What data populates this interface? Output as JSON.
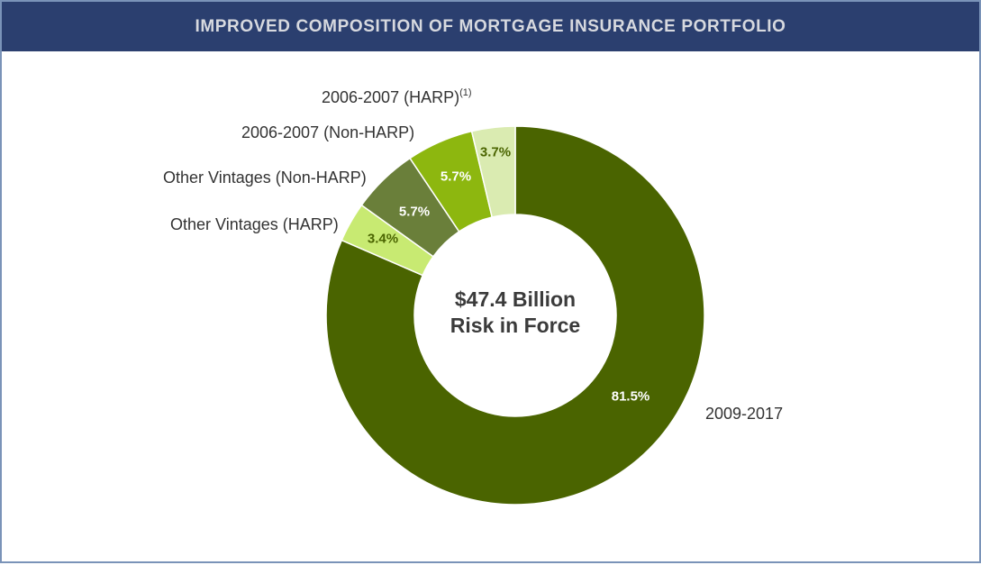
{
  "header": {
    "title": "IMPROVED COMPOSITION OF MORTGAGE INSURANCE PORTFOLIO"
  },
  "center": {
    "line1": "$47.4 Billion",
    "line2": "Risk in Force"
  },
  "colors": {
    "header_bg": "#2b3f6f",
    "header_text": "#d7d9df",
    "frame_border": "#7a93b8"
  },
  "labels": {
    "s2009": "2009-2017",
    "ovharp": "Other Vintages (HARP)",
    "ovnonharp": "Other Vintages (Non-HARP)",
    "nonharp0607": "2006-2007 (Non-HARP)",
    "harp0607": "2006-2007 (HARP)",
    "harp0607_footnote": "(1)"
  },
  "values": {
    "s2009": "81.5%",
    "ovharp": "3.4%",
    "ovnonharp": "5.7%",
    "nonharp0607": "5.7%",
    "harp0607": "3.7%"
  },
  "chart_data": {
    "type": "pie",
    "subtype": "donut",
    "title": "IMPROVED COMPOSITION OF MORTGAGE INSURANCE PORTFOLIO",
    "center_annotation": "$47.4 Billion Risk in Force",
    "categories": [
      "2009-2017",
      "Other Vintages (HARP)",
      "Other Vintages (Non-HARP)",
      "2006-2007 (Non-HARP)",
      "2006-2007 (HARP)(1)"
    ],
    "values": [
      81.5,
      3.4,
      5.7,
      5.7,
      3.7
    ],
    "unit": "%",
    "colors": [
      "#4a6400",
      "#c8ea72",
      "#6a7f3a",
      "#8db70f",
      "#daebb1"
    ],
    "start_angle": "12 o'clock, clockwise",
    "legend": "none (direct labels)"
  }
}
